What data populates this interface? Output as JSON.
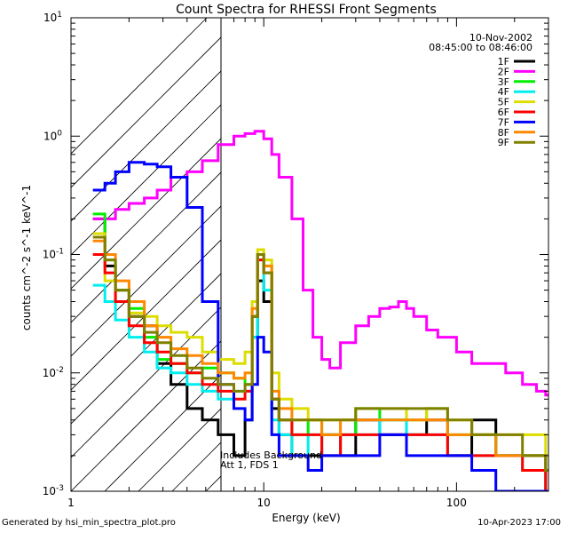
{
  "chart_data": {
    "type": "line",
    "title": "Count Spectra for RHESSI Front Segments",
    "xlabel": "Energy (keV)",
    "ylabel": "counts cm^-2 s^-1 keV^-1",
    "xscale": "log",
    "yscale": "log",
    "xlim": [
      1,
      300
    ],
    "ylim": [
      0.001,
      10
    ],
    "x_ticks": [
      {
        "v": 1,
        "label": "1"
      },
      {
        "v": 10,
        "label": "10"
      },
      {
        "v": 100,
        "label": "100"
      }
    ],
    "y_ticks": [
      {
        "v": 10,
        "base": "10",
        "exp": "1"
      },
      {
        "v": 1,
        "base": "10",
        "exp": "0"
      },
      {
        "v": 0.1,
        "base": "10",
        "exp": "-1"
      },
      {
        "v": 0.01,
        "base": "10",
        "exp": "-2"
      },
      {
        "v": 0.001,
        "base": "10",
        "exp": "-3"
      }
    ],
    "annotations": {
      "date": "10-Nov-2002",
      "time_range": "08:45:00 to 08:46:00",
      "note1": "Includes Background",
      "note2": "Att 1, FDS 1"
    },
    "excluded_region_upper_keV": 6,
    "series": [
      {
        "name": "1F",
        "color": "#000000",
        "x": [
          1.3,
          1.5,
          1.7,
          2.0,
          2.4,
          2.8,
          3.3,
          4.0,
          4.8,
          5.8,
          7.0,
          8.0,
          8.7,
          9.3,
          10,
          11,
          12,
          14,
          17,
          20,
          25,
          30,
          40,
          55,
          70,
          90,
          120,
          160,
          220,
          290
        ],
        "values": [
          0.2,
          0.08,
          0.05,
          0.03,
          0.025,
          0.012,
          0.008,
          0.005,
          0.004,
          0.003,
          0.002,
          0.004,
          0.02,
          0.06,
          0.04,
          0.005,
          0.003,
          0.002,
          0.002,
          0.003,
          0.002,
          0.004,
          0.003,
          0.003,
          0.004,
          0.002,
          0.004,
          0.002,
          0.002,
          0.001
        ]
      },
      {
        "name": "2F",
        "color": "#ff00ff",
        "x": [
          1.3,
          1.5,
          1.7,
          2.0,
          2.4,
          2.8,
          3.3,
          4.0,
          4.8,
          5.8,
          7.0,
          8.0,
          9.0,
          10,
          11,
          12,
          14,
          16,
          18,
          20,
          22,
          25,
          30,
          35,
          40,
          45,
          50,
          55,
          60,
          70,
          80,
          100,
          120,
          150,
          180,
          220,
          260,
          290
        ],
        "values": [
          0.2,
          0.2,
          0.24,
          0.27,
          0.3,
          0.35,
          0.45,
          0.5,
          0.62,
          0.85,
          1.0,
          1.05,
          1.1,
          0.95,
          0.7,
          0.45,
          0.2,
          0.05,
          0.02,
          0.013,
          0.011,
          0.018,
          0.025,
          0.03,
          0.035,
          0.036,
          0.04,
          0.035,
          0.03,
          0.023,
          0.02,
          0.015,
          0.012,
          0.012,
          0.01,
          0.008,
          0.007,
          0.0065
        ]
      },
      {
        "name": "3F",
        "color": "#00ee00",
        "x": [
          1.3,
          1.5,
          1.7,
          2.0,
          2.4,
          2.8,
          3.3,
          4.0,
          4.8,
          5.8,
          7.0,
          8.0,
          8.7,
          9.3,
          10,
          11,
          12,
          14,
          17,
          20,
          25,
          30,
          40,
          55,
          70,
          90,
          120,
          160,
          220,
          290
        ],
        "values": [
          0.22,
          0.09,
          0.05,
          0.035,
          0.02,
          0.013,
          0.012,
          0.01,
          0.011,
          0.01,
          0.009,
          0.008,
          0.03,
          0.1,
          0.08,
          0.006,
          0.004,
          0.003,
          0.004,
          0.003,
          0.003,
          0.005,
          0.004,
          0.004,
          0.005,
          0.003,
          0.003,
          0.002,
          0.002,
          0.0015
        ]
      },
      {
        "name": "4F",
        "color": "#00eeee",
        "x": [
          1.3,
          1.5,
          1.7,
          2.0,
          2.4,
          2.8,
          3.3,
          4.0,
          4.8,
          5.8,
          7.0,
          8.0,
          8.7,
          9.3,
          10,
          11,
          12,
          14,
          17,
          20,
          25,
          30,
          40,
          55,
          70,
          90,
          120,
          160,
          220,
          290
        ],
        "values": [
          0.055,
          0.04,
          0.028,
          0.02,
          0.015,
          0.011,
          0.01,
          0.008,
          0.007,
          0.006,
          0.007,
          0.007,
          0.02,
          0.09,
          0.05,
          0.004,
          0.003,
          0.002,
          0.003,
          0.002,
          0.003,
          0.003,
          0.004,
          0.003,
          0.003,
          0.002,
          0.002,
          0.002,
          0.0015,
          0.001
        ]
      },
      {
        "name": "5F",
        "color": "#dddd00",
        "x": [
          1.3,
          1.5,
          1.7,
          2.0,
          2.4,
          2.8,
          3.3,
          4.0,
          4.8,
          5.8,
          7.0,
          8.0,
          8.7,
          9.3,
          10,
          11,
          12,
          14,
          17,
          20,
          25,
          30,
          40,
          55,
          70,
          90,
          120,
          160,
          220,
          290
        ],
        "values": [
          0.15,
          0.06,
          0.04,
          0.032,
          0.03,
          0.025,
          0.022,
          0.02,
          0.015,
          0.013,
          0.012,
          0.015,
          0.04,
          0.11,
          0.09,
          0.01,
          0.006,
          0.005,
          0.004,
          0.004,
          0.004,
          0.005,
          0.005,
          0.004,
          0.005,
          0.004,
          0.003,
          0.003,
          0.003,
          0.002
        ]
      },
      {
        "name": "6F",
        "color": "#ff0000",
        "x": [
          1.3,
          1.5,
          1.7,
          2.0,
          2.4,
          2.8,
          3.3,
          4.0,
          4.8,
          5.8,
          7.0,
          8.0,
          8.7,
          9.3,
          10,
          11,
          12,
          14,
          17,
          20,
          25,
          30,
          40,
          55,
          70,
          90,
          120,
          160,
          220,
          290
        ],
        "values": [
          0.1,
          0.07,
          0.04,
          0.025,
          0.018,
          0.015,
          0.012,
          0.01,
          0.008,
          0.007,
          0.006,
          0.007,
          0.03,
          0.09,
          0.07,
          0.006,
          0.004,
          0.003,
          0.003,
          0.002,
          0.003,
          0.003,
          0.003,
          0.003,
          0.003,
          0.002,
          0.002,
          0.002,
          0.0015,
          0.001
        ]
      },
      {
        "name": "7F",
        "color": "#0000ff",
        "x": [
          1.3,
          1.5,
          1.7,
          2.0,
          2.4,
          2.8,
          3.3,
          4.0,
          4.8,
          5.8,
          7.0,
          8.0,
          8.7,
          9.3,
          10,
          11,
          12,
          14,
          17,
          20,
          25,
          30,
          40,
          55,
          70,
          90,
          120,
          160,
          220,
          290
        ],
        "values": [
          0.35,
          0.4,
          0.5,
          0.6,
          0.58,
          0.55,
          0.45,
          0.25,
          0.04,
          0.008,
          0.005,
          0.004,
          0.008,
          0.02,
          0.015,
          0.003,
          0.002,
          0.002,
          0.0015,
          0.002,
          0.002,
          0.002,
          0.003,
          0.002,
          0.002,
          0.002,
          0.0015,
          0.001,
          0.001,
          0.001
        ]
      },
      {
        "name": "8F",
        "color": "#ff8800",
        "x": [
          1.3,
          1.5,
          1.7,
          2.0,
          2.4,
          2.8,
          3.3,
          4.0,
          4.8,
          5.8,
          7.0,
          8.0,
          8.7,
          9.3,
          10,
          11,
          12,
          14,
          17,
          20,
          25,
          30,
          40,
          55,
          70,
          90,
          120,
          160,
          220,
          290
        ],
        "values": [
          0.13,
          0.1,
          0.06,
          0.04,
          0.025,
          0.02,
          0.016,
          0.014,
          0.012,
          0.01,
          0.009,
          0.01,
          0.035,
          0.1,
          0.08,
          0.007,
          0.005,
          0.004,
          0.004,
          0.003,
          0.004,
          0.004,
          0.004,
          0.004,
          0.004,
          0.003,
          0.003,
          0.002,
          0.002,
          0.0015
        ]
      },
      {
        "name": "9F",
        "color": "#808000",
        "x": [
          1.3,
          1.5,
          1.7,
          2.0,
          2.4,
          2.8,
          3.3,
          4.0,
          4.8,
          5.8,
          7.0,
          8.0,
          8.7,
          9.3,
          10,
          11,
          12,
          14,
          17,
          20,
          25,
          30,
          40,
          55,
          70,
          90,
          120,
          160,
          220,
          290
        ],
        "values": [
          0.14,
          0.09,
          0.05,
          0.03,
          0.022,
          0.018,
          0.014,
          0.011,
          0.009,
          0.008,
          0.007,
          0.008,
          0.03,
          0.1,
          0.07,
          0.006,
          0.004,
          0.004,
          0.004,
          0.004,
          0.004,
          0.005,
          0.005,
          0.005,
          0.005,
          0.004,
          0.003,
          0.003,
          0.002,
          0.0015
        ]
      }
    ]
  },
  "footer": {
    "left": "Generated by hsi_min_spectra_plot.pro",
    "right": "10-Apr-2023 17:00"
  }
}
